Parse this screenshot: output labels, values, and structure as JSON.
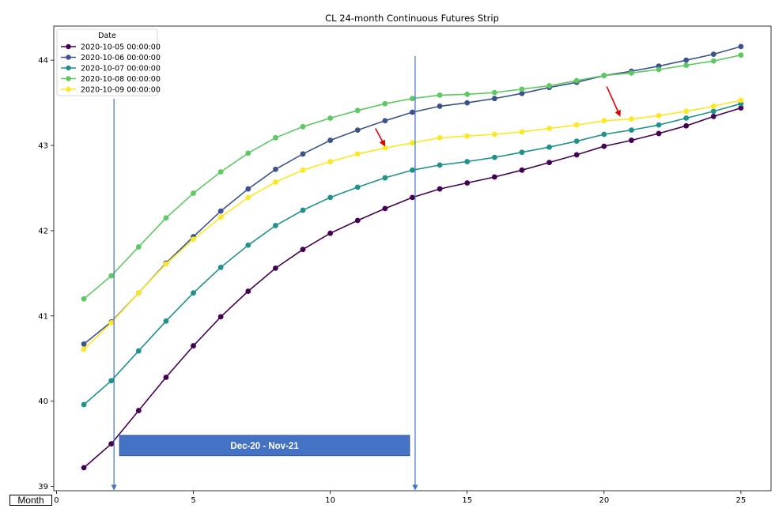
{
  "chart_data": {
    "type": "line",
    "title": "CL 24-month Continuous Futures Strip",
    "xlabel": "Month",
    "ylabel": "",
    "xlim": [
      -0.1,
      26.1
    ],
    "ylim": [
      38.95,
      44.4
    ],
    "xticks": [
      0,
      5,
      10,
      15,
      20,
      25
    ],
    "yticks": [
      39,
      40,
      41,
      42,
      43,
      44
    ],
    "grid": false,
    "legend": {
      "title": "Date",
      "placement": "upper-left"
    },
    "x": [
      1,
      2,
      3,
      4,
      5,
      6,
      7,
      8,
      9,
      10,
      11,
      12,
      13,
      14,
      15,
      16,
      17,
      18,
      19,
      20,
      21,
      22,
      23,
      24,
      25
    ],
    "series": [
      {
        "name": "2020-10-05 00:00:00",
        "color": "#440154",
        "values": [
          39.22,
          39.5,
          39.89,
          40.28,
          40.65,
          40.99,
          41.29,
          41.56,
          41.78,
          41.97,
          42.12,
          42.26,
          42.39,
          42.49,
          42.56,
          42.63,
          42.71,
          42.8,
          42.89,
          42.99,
          43.06,
          43.14,
          43.23,
          43.34,
          43.44
        ]
      },
      {
        "name": "2020-10-06 00:00:00",
        "color": "#3b528b",
        "values": [
          40.67,
          40.93,
          41.27,
          41.62,
          41.93,
          42.23,
          42.49,
          42.72,
          42.9,
          43.06,
          43.18,
          43.29,
          43.39,
          43.46,
          43.5,
          43.55,
          43.61,
          43.68,
          43.74,
          43.82,
          43.87,
          43.93,
          44.0,
          44.07,
          44.16
        ]
      },
      {
        "name": "2020-10-07 00:00:00",
        "color": "#21918c",
        "values": [
          39.96,
          40.24,
          40.59,
          40.94,
          41.27,
          41.57,
          41.83,
          42.06,
          42.24,
          42.39,
          42.51,
          42.62,
          42.71,
          42.77,
          42.81,
          42.86,
          42.92,
          42.98,
          43.05,
          43.13,
          43.18,
          43.24,
          43.32,
          43.4,
          43.49
        ]
      },
      {
        "name": "2020-10-08 00:00:00",
        "color": "#5ec962",
        "values": [
          41.2,
          41.47,
          41.81,
          42.15,
          42.44,
          42.69,
          42.91,
          43.09,
          43.22,
          43.32,
          43.41,
          43.49,
          43.55,
          43.59,
          43.6,
          43.62,
          43.66,
          43.7,
          43.76,
          43.82,
          43.85,
          43.89,
          43.94,
          43.99,
          44.06
        ]
      },
      {
        "name": "2020-10-09 00:00:00",
        "color": "#fde725",
        "values": [
          40.61,
          40.92,
          41.27,
          41.61,
          41.9,
          42.16,
          42.39,
          42.57,
          42.71,
          42.81,
          42.9,
          42.97,
          43.03,
          43.09,
          43.11,
          43.13,
          43.16,
          43.2,
          43.24,
          43.29,
          43.31,
          43.35,
          43.4,
          43.46,
          43.53
        ]
      }
    ],
    "vertical_markers": [
      2.1,
      13.1
    ],
    "band_annotation": {
      "text": "Dec-20 - Nov-21",
      "x_range": [
        2.3,
        12.9
      ],
      "y_range": [
        39.36,
        39.6
      ],
      "color": "#4472c4"
    },
    "arrow_annotations": [
      {
        "from": [
          20.1,
          43.69
        ],
        "to": [
          20.55,
          43.37
        ],
        "color": "#e00000"
      },
      {
        "from": [
          11.65,
          43.2
        ],
        "to": [
          11.95,
          43.02
        ],
        "color": "#e00000"
      }
    ]
  }
}
